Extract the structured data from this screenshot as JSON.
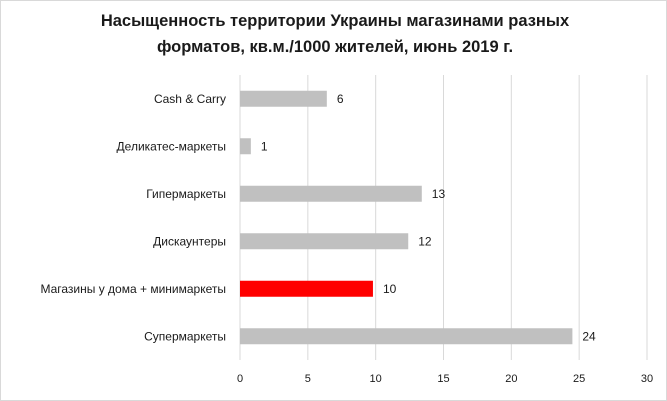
{
  "chart_data": {
    "type": "bar",
    "orientation": "horizontal",
    "title": "Насыщенность территории Украины магазинами разных\nформатов, кв.м./1000 жителей, июнь 2019 г.",
    "categories": [
      "Cash & Carry",
      "Деликатес-маркеты",
      "Гипермаркеты",
      "Дискаунтеры",
      "Магазины у дома + минимаркеты",
      "Супермаркеты"
    ],
    "values": [
      6.4,
      0.8,
      13.4,
      12.4,
      9.8,
      24.5
    ],
    "data_labels": [
      "6",
      "1",
      "13",
      "12",
      "10",
      "24"
    ],
    "xlim": [
      0,
      30
    ],
    "xticks": [
      0,
      5,
      10,
      15,
      20,
      25,
      30
    ],
    "grid": true,
    "bar_color": "#c0c0c0",
    "highlight_color": "#ff0000",
    "highlight_index": 4,
    "xlabel": "",
    "ylabel": ""
  }
}
